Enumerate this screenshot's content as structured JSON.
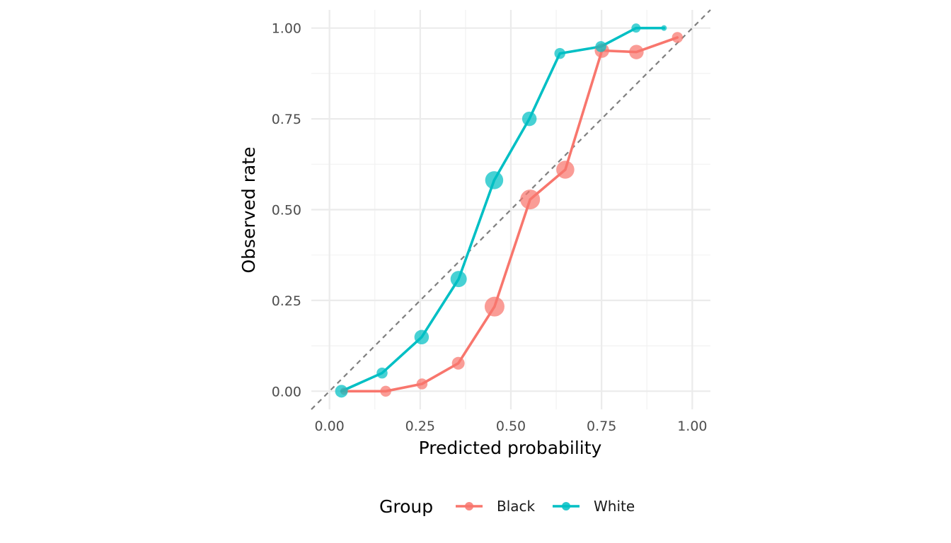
{
  "chart_data": {
    "type": "line",
    "xlabel": "Predicted probability",
    "ylabel": "Observed rate",
    "xlim": [
      -0.05,
      1.05
    ],
    "ylim": [
      -0.05,
      1.05
    ],
    "x_ticks": [
      "0.00",
      "0.25",
      "0.50",
      "0.75",
      "1.00"
    ],
    "y_ticks": [
      "0.00",
      "0.25",
      "0.50",
      "0.75",
      "1.00"
    ],
    "x_tick_values": [
      0,
      0.25,
      0.5,
      0.75,
      1.0
    ],
    "y_tick_values": [
      0,
      0.25,
      0.5,
      0.75,
      1.0
    ],
    "grid": true,
    "reference_line": {
      "style": "dashed",
      "color": "#7f7f7f",
      "slope": 1,
      "intercept": 0
    },
    "legend": {
      "title": "Group",
      "position": "bottom"
    },
    "series": [
      {
        "name": "Black",
        "color": "#F8766D",
        "points": [
          {
            "x": 0.04,
            "y": 0.0,
            "size": 3
          },
          {
            "x": 0.155,
            "y": 0.0,
            "size": 5
          },
          {
            "x": 0.255,
            "y": 0.02,
            "size": 5
          },
          {
            "x": 0.355,
            "y": 0.077,
            "size": 6
          },
          {
            "x": 0.455,
            "y": 0.233,
            "size": 10
          },
          {
            "x": 0.553,
            "y": 0.528,
            "size": 10
          },
          {
            "x": 0.65,
            "y": 0.61,
            "size": 9
          },
          {
            "x": 0.751,
            "y": 0.938,
            "size": 7
          },
          {
            "x": 0.846,
            "y": 0.934,
            "size": 7
          },
          {
            "x": 0.959,
            "y": 0.974,
            "size": 5
          }
        ]
      },
      {
        "name": "White",
        "color": "#00BFC4",
        "points": [
          {
            "x": 0.033,
            "y": 0.0,
            "size": 6
          },
          {
            "x": 0.145,
            "y": 0.05,
            "size": 5
          },
          {
            "x": 0.254,
            "y": 0.149,
            "size": 7
          },
          {
            "x": 0.356,
            "y": 0.309,
            "size": 8
          },
          {
            "x": 0.454,
            "y": 0.581,
            "size": 9
          },
          {
            "x": 0.551,
            "y": 0.75,
            "size": 7
          },
          {
            "x": 0.635,
            "y": 0.93,
            "size": 5
          },
          {
            "x": 0.748,
            "y": 0.949,
            "size": 5
          },
          {
            "x": 0.845,
            "y": 1.0,
            "size": 4
          },
          {
            "x": 0.922,
            "y": 1.0,
            "size": 2
          }
        ]
      }
    ]
  }
}
